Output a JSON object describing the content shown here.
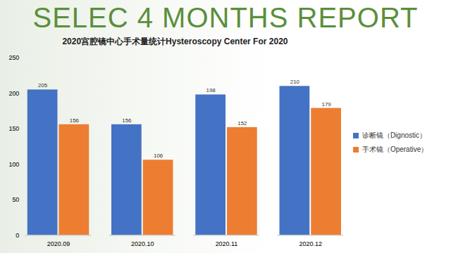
{
  "heading": "SELEC 4 MONTHS REPORT",
  "chart_data": {
    "type": "bar",
    "title": "2020宫腔镜中心手术量统计Hysteroscopy Center For 2020",
    "categories": [
      "2020.09",
      "2020.10",
      "2020.11",
      "2020.12"
    ],
    "series": [
      {
        "name": "诊断镜（Dignostic）",
        "color": "#4472c4",
        "values": [
          205,
          156,
          198,
          210
        ]
      },
      {
        "name": "手术镜（Operative）",
        "color": "#ed7d31",
        "values": [
          156,
          106,
          152,
          179
        ]
      }
    ],
    "ylim": [
      0,
      250
    ],
    "yticks": [
      0,
      50,
      100,
      150,
      200,
      250
    ],
    "grid": false,
    "data_labels": true,
    "legend": "right"
  }
}
